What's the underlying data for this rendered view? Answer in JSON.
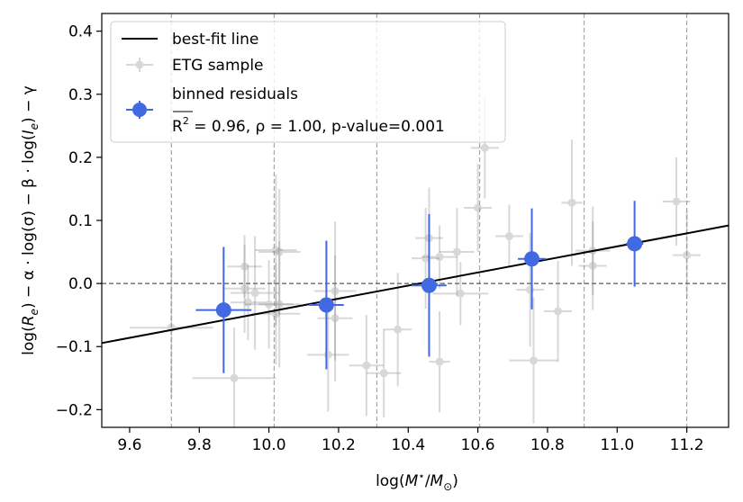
{
  "chart_data": {
    "type": "scatter",
    "title": "",
    "xlabel_parts": [
      "log(",
      "M",
      "⋆",
      "/",
      "M",
      "⊙",
      ")"
    ],
    "ylabel_parts": [
      "log(",
      "R",
      "e",
      ") − α · log(σ) − β · log(",
      "I",
      "e",
      ") − γ"
    ],
    "xlim": [
      9.52,
      11.32
    ],
    "ylim": [
      -0.228,
      0.428
    ],
    "xticks": [
      9.6,
      9.8,
      10.0,
      10.2,
      10.4,
      10.6,
      10.8,
      11.0,
      11.2
    ],
    "xtick_labels": [
      "9.6",
      "9.8",
      "10.0",
      "10.2",
      "10.4",
      "10.6",
      "10.8",
      "11.0",
      "11.2"
    ],
    "yticks": [
      -0.2,
      -0.1,
      0.0,
      0.1,
      0.2,
      0.3,
      0.4
    ],
    "ytick_labels": [
      "−0.2",
      "−0.1",
      "0.0",
      "0.1",
      "0.2",
      "0.3",
      "0.4"
    ],
    "bin_edges": [
      9.72,
      10.015,
      10.31,
      10.605,
      10.905,
      11.2
    ],
    "zero_line": 0.0,
    "best_fit": {
      "name": "best-fit line",
      "slope": 0.1035,
      "intercept": -1.0797,
      "color": "#000000"
    },
    "series": [
      {
        "name": "ETG sample",
        "color": "#808080",
        "points": [
          {
            "x": 9.72,
            "y": -0.07,
            "xerr": 0.12,
            "yerr": 0.11
          },
          {
            "x": 9.9,
            "y": -0.15,
            "xerr": 0.12,
            "yerr": 0.08
          },
          {
            "x": 9.93,
            "y": 0.027,
            "xerr": 0.05,
            "yerr": 0.05
          },
          {
            "x": 9.93,
            "y": -0.008,
            "xerr": 0.06,
            "yerr": 0.07
          },
          {
            "x": 9.94,
            "y": -0.03,
            "xerr": 0.05,
            "yerr": 0.06
          },
          {
            "x": 9.96,
            "y": -0.015,
            "xerr": 0.07,
            "yerr": 0.09
          },
          {
            "x": 10.0,
            "y": -0.033,
            "xerr": 0.07,
            "yerr": 0.07
          },
          {
            "x": 10.02,
            "y": 0.053,
            "xerr": 0.06,
            "yerr": 0.12
          },
          {
            "x": 10.03,
            "y": 0.05,
            "xerr": 0.06,
            "yerr": 0.1
          },
          {
            "x": 10.03,
            "y": -0.033,
            "xerr": 0.06,
            "yerr": 0.1
          },
          {
            "x": 10.02,
            "y": -0.048,
            "xerr": 0.07,
            "yerr": 0.08
          },
          {
            "x": 10.17,
            "y": -0.113,
            "xerr": 0.06,
            "yerr": 0.09
          },
          {
            "x": 10.19,
            "y": -0.055,
            "xerr": 0.05,
            "yerr": 0.1
          },
          {
            "x": 10.19,
            "y": -0.012,
            "xerr": 0.06,
            "yerr": 0.11
          },
          {
            "x": 10.28,
            "y": -0.13,
            "xerr": 0.05,
            "yerr": 0.08
          },
          {
            "x": 10.33,
            "y": -0.142,
            "xerr": 0.05,
            "yerr": 0.07
          },
          {
            "x": 10.37,
            "y": -0.073,
            "xerr": 0.04,
            "yerr": 0.09
          },
          {
            "x": 10.45,
            "y": 0.04,
            "xerr": 0.04,
            "yerr": 0.08
          },
          {
            "x": 10.46,
            "y": 0.072,
            "xerr": 0.04,
            "yerr": 0.08
          },
          {
            "x": 10.49,
            "y": -0.124,
            "xerr": 0.03,
            "yerr": 0.08
          },
          {
            "x": 10.49,
            "y": 0.042,
            "xerr": 0.05,
            "yerr": 0.05
          },
          {
            "x": 10.54,
            "y": 0.05,
            "xerr": 0.05,
            "yerr": 0.07
          },
          {
            "x": 10.55,
            "y": -0.016,
            "xerr": 0.08,
            "yerr": 0.05
          },
          {
            "x": 10.6,
            "y": 0.12,
            "xerr": 0.04,
            "yerr": 0.07
          },
          {
            "x": 10.62,
            "y": 0.215,
            "xerr": 0.04,
            "yerr": 0.08
          },
          {
            "x": 10.69,
            "y": 0.075,
            "xerr": 0.04,
            "yerr": 0.05
          },
          {
            "x": 10.75,
            "y": -0.01,
            "xerr": 0.04,
            "yerr": 0.09
          },
          {
            "x": 10.76,
            "y": -0.122,
            "xerr": 0.07,
            "yerr": 0.1
          },
          {
            "x": 10.83,
            "y": -0.044,
            "xerr": 0.04,
            "yerr": 0.08
          },
          {
            "x": 10.87,
            "y": 0.128,
            "xerr": 0.03,
            "yerr": 0.1
          },
          {
            "x": 10.93,
            "y": 0.052,
            "xerr": 0.05,
            "yerr": 0.07
          },
          {
            "x": 10.93,
            "y": 0.028,
            "xerr": 0.04,
            "yerr": 0.07
          },
          {
            "x": 11.17,
            "y": 0.13,
            "xerr": 0.04,
            "yerr": 0.07
          },
          {
            "x": 11.2,
            "y": 0.045,
            "xerr": 0.04,
            "yerr": 0.07
          }
        ]
      },
      {
        "name": "binned residuals",
        "color": "#4169e1",
        "points": [
          {
            "x": 9.87,
            "y": -0.042,
            "xerr": 0.08,
            "yerr": 0.1
          },
          {
            "x": 10.165,
            "y": -0.034,
            "xerr": 0.05,
            "yerr": 0.102
          },
          {
            "x": 10.46,
            "y": -0.003,
            "xerr": 0.05,
            "yerr": 0.113
          },
          {
            "x": 10.755,
            "y": 0.039,
            "xerr": 0.04,
            "yerr": 0.08
          },
          {
            "x": 11.05,
            "y": 0.063,
            "xerr": 0.025,
            "yerr": 0.068
          }
        ]
      }
    ],
    "legend": {
      "position": "top-left",
      "entries": [
        {
          "label": "best-fit line"
        },
        {
          "label": "ETG sample"
        },
        {
          "label": "binned residuals"
        }
      ],
      "stats_prefix": "R",
      "stats_sup": "2",
      "stats_rest": " = 0.96, ρ = 1.00, p-value=0.001"
    }
  }
}
